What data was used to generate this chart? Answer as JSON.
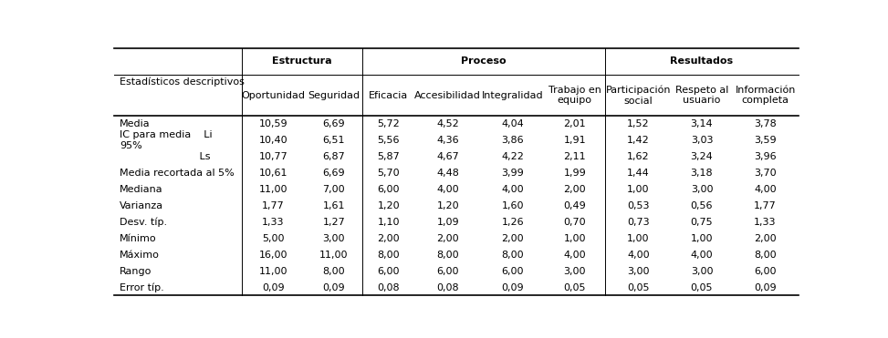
{
  "col_headers": [
    "Estadísticos descriptivos",
    "Oportunidad",
    "Seguridad",
    "Eficacia",
    "Accesibilidad",
    "Integralidad",
    "Trabajo en\nequipo",
    "Participación\nsocial",
    "Respeto al\nusuario",
    "Información\ncompleta"
  ],
  "row_labels": [
    "Media",
    "IC para media    Li\n95%",
    "                         Ls",
    "Media recortada al 5%",
    "Mediana",
    "Varianza",
    "Desv. típ.",
    "Mínimo",
    "Máximo",
    "Rango",
    "Error típ."
  ],
  "data": [
    [
      "10,59",
      "6,69",
      "5,72",
      "4,52",
      "4,04",
      "2,01",
      "1,52",
      "3,14",
      "3,78"
    ],
    [
      "10,40",
      "6,51",
      "5,56",
      "4,36",
      "3,86",
      "1,91",
      "1,42",
      "3,03",
      "3,59"
    ],
    [
      "10,77",
      "6,87",
      "5,87",
      "4,67",
      "4,22",
      "2,11",
      "1,62",
      "3,24",
      "3,96"
    ],
    [
      "10,61",
      "6,69",
      "5,70",
      "4,48",
      "3,99",
      "1,99",
      "1,44",
      "3,18",
      "3,70"
    ],
    [
      "11,00",
      "7,00",
      "6,00",
      "4,00",
      "4,00",
      "2,00",
      "1,00",
      "3,00",
      "4,00"
    ],
    [
      "1,77",
      "1,61",
      "1,20",
      "1,20",
      "1,60",
      "0,49",
      "0,53",
      "0,56",
      "1,77"
    ],
    [
      "1,33",
      "1,27",
      "1,10",
      "1,09",
      "1,26",
      "0,70",
      "0,73",
      "0,75",
      "1,33"
    ],
    [
      "5,00",
      "3,00",
      "2,00",
      "2,00",
      "2,00",
      "1,00",
      "1,00",
      "1,00",
      "2,00"
    ],
    [
      "16,00",
      "11,00",
      "8,00",
      "8,00",
      "8,00",
      "4,00",
      "4,00",
      "4,00",
      "8,00"
    ],
    [
      "11,00",
      "8,00",
      "6,00",
      "6,00",
      "6,00",
      "3,00",
      "3,00",
      "3,00",
      "6,00"
    ],
    [
      "0,09",
      "0,09",
      "0,08",
      "0,08",
      "0,09",
      "0,05",
      "0,05",
      "0,05",
      "0,09"
    ]
  ],
  "col_widths_rel": [
    2.2,
    1.1,
    1.0,
    0.9,
    1.15,
    1.1,
    1.05,
    1.15,
    1.05,
    1.15
  ],
  "background_color": "#ffffff",
  "text_color": "#000000",
  "font_size": 8.0
}
